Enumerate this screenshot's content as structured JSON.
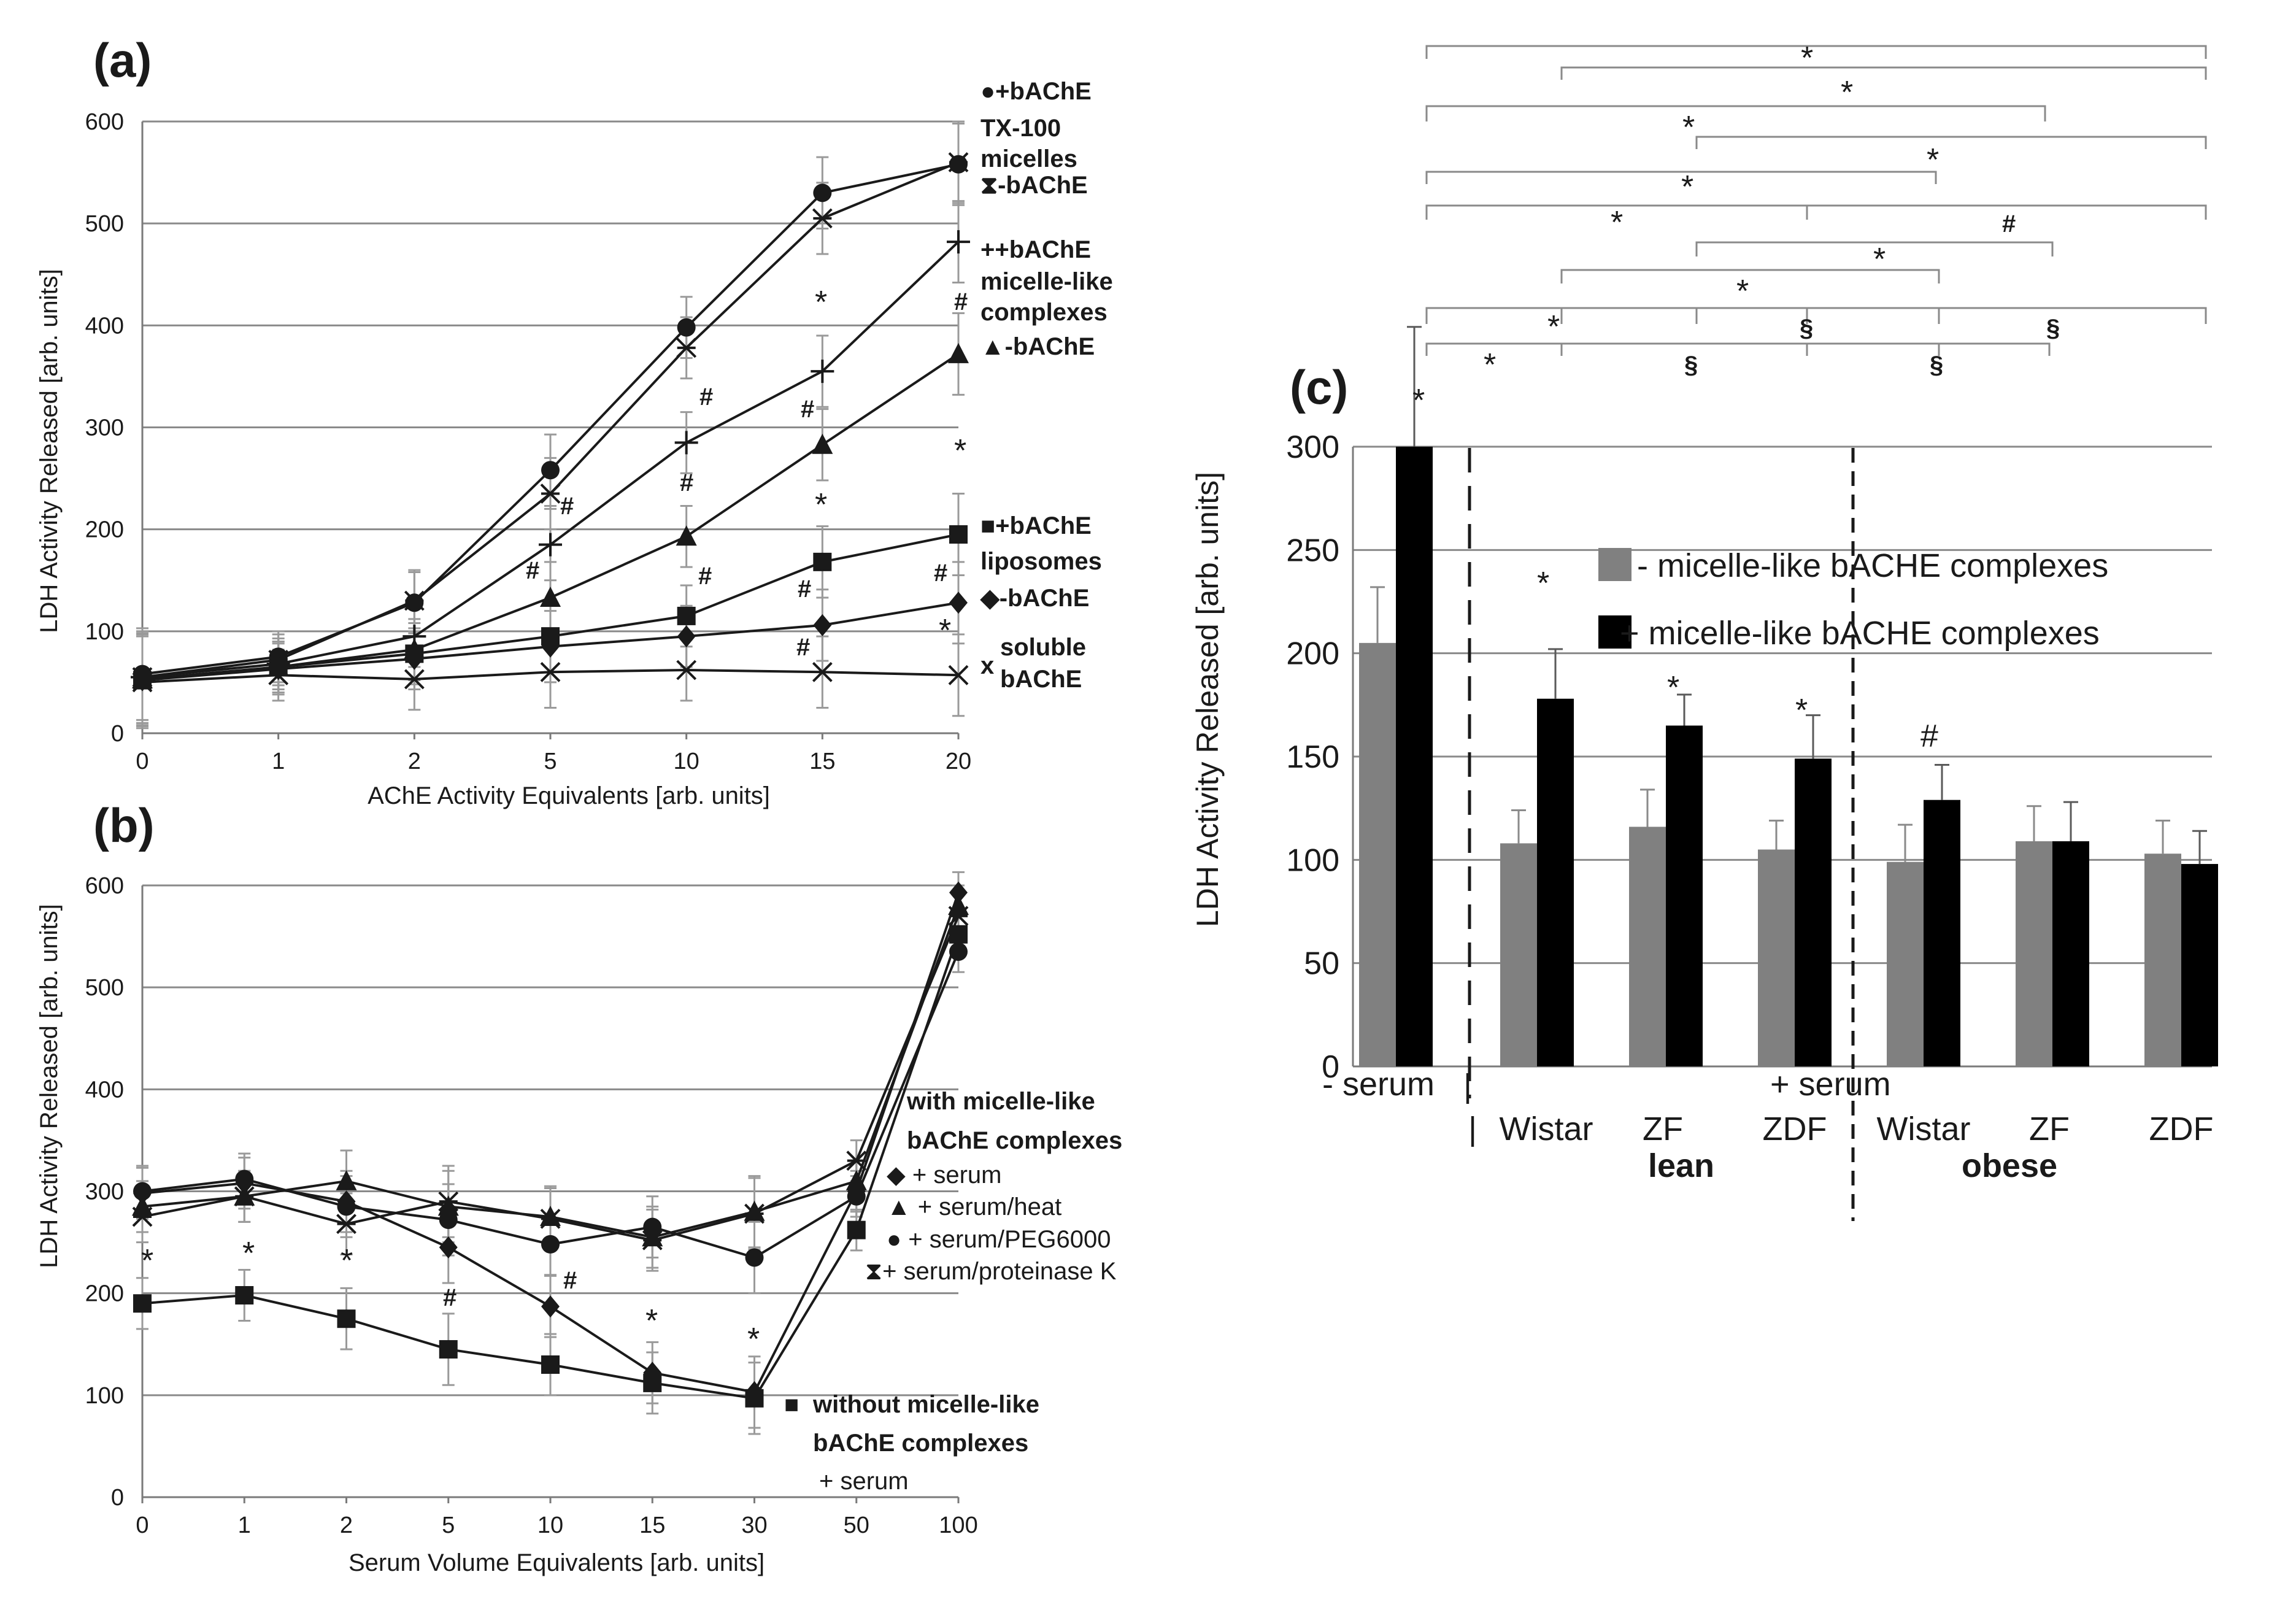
{
  "chart_data": [
    {
      "panel": "(a)",
      "type": "line",
      "xlabel": "AChE Activity Equivalents [arb. units]",
      "ylabel": "LDH Activity Released [arb. units]",
      "categories": [
        "0",
        "1",
        "2",
        "5",
        "10",
        "15",
        "20"
      ],
      "ylim": [
        0,
        600
      ],
      "yticks": [
        "0",
        "100",
        "200",
        "300",
        "400",
        "500",
        "600"
      ],
      "grid": true,
      "series": [
        {
          "name": "+bAChE TX-100 micelles",
          "marker": "circle",
          "values": [
            58,
            75,
            128,
            258,
            398,
            530,
            558
          ]
        },
        {
          "name": "-bAChE TX-100 micelles",
          "marker": "star",
          "values": [
            55,
            72,
            130,
            235,
            378,
            505,
            560
          ]
        },
        {
          "name": "+bAChE micelle-like complexes",
          "marker": "plus",
          "values": [
            55,
            68,
            95,
            185,
            285,
            355,
            482
          ]
        },
        {
          "name": "-bAChE micelle-like complexes",
          "marker": "triangle",
          "values": [
            53,
            65,
            82,
            133,
            193,
            283,
            372
          ]
        },
        {
          "name": "+bAChE liposomes",
          "marker": "square",
          "values": [
            52,
            65,
            78,
            95,
            115,
            168,
            195
          ]
        },
        {
          "name": "-bAChE liposomes",
          "marker": "diamond",
          "values": [
            52,
            63,
            73,
            85,
            95,
            106,
            128
          ]
        },
        {
          "name": "soluble bAChE",
          "marker": "x",
          "values": [
            50,
            57,
            53,
            60,
            62,
            60,
            57
          ]
        }
      ],
      "errors": [
        45,
        25,
        30,
        35,
        30,
        35,
        40
      ],
      "legend": {
        "g1": [
          "●+bAChE",
          "TX-100",
          "micelles",
          "⧗-bAChE"
        ],
        "g2": [
          "++bAChE",
          "micelle-like",
          "complexes",
          "▲-bAChE"
        ],
        "g3": [
          "■+bAChE",
          "liposomes",
          "◆-bAChE"
        ],
        "g4": [
          "x",
          "soluble",
          "bAChE"
        ]
      },
      "annotations": {
        "star": "*",
        "hash": "#"
      }
    },
    {
      "panel": "(b)",
      "type": "line",
      "xlabel": "Serum Volume Equivalents [arb. units]",
      "ylabel": "LDH Activity Released [arb. units]",
      "categories": [
        "0",
        "1",
        "2",
        "5",
        "10",
        "15",
        "30",
        "50",
        "100"
      ],
      "ylim": [
        0,
        600
      ],
      "yticks": [
        "0",
        "100",
        "200",
        "300",
        "400",
        "500",
        "600"
      ],
      "grid": true,
      "series": [
        {
          "name": "+ serum",
          "marker": "diamond",
          "values": [
            298,
            308,
            290,
            245,
            187,
            122,
            103,
            300,
            593
          ]
        },
        {
          "name": "+ serum/heat",
          "marker": "triangle",
          "values": [
            285,
            295,
            310,
            285,
            275,
            255,
            280,
            310,
            580
          ]
        },
        {
          "name": "+ serum/PEG6000",
          "marker": "circle",
          "values": [
            300,
            312,
            285,
            272,
            248,
            265,
            235,
            295,
            535
          ]
        },
        {
          "name": "+ serum/proteinase K",
          "marker": "star",
          "values": [
            275,
            295,
            268,
            290,
            273,
            252,
            278,
            330,
            570
          ]
        },
        {
          "name": "without micelle-like bAChE complexes + serum",
          "marker": "square",
          "values": [
            190,
            198,
            175,
            145,
            130,
            112,
            97,
            262,
            552
          ]
        }
      ],
      "errors": [
        25,
        25,
        30,
        35,
        30,
        30,
        35,
        20,
        20
      ],
      "legend": {
        "with_l1": "with micelle-like",
        "with_l2": "bAChE complexes",
        "s1": "◆ + serum",
        "s2": "▲ + serum/heat",
        "s3": "● + serum/PEG6000",
        "s4": "⧗+ serum/proteinase K",
        "wo_l1": "without micelle-like",
        "wo_l2": "bAChE complexes",
        "wo_l3": "+ serum",
        "wo_marker": "■"
      }
    },
    {
      "panel": "(c)",
      "type": "bar",
      "ylabel": "LDH Activity Released  [arb. units]",
      "ylim": [
        0,
        300
      ],
      "yticks": [
        "0",
        "50",
        "100",
        "150",
        "200",
        "250",
        "300"
      ],
      "grid": true,
      "groups": [
        "- serum",
        "Wistar",
        "ZF",
        "ZDF",
        "Wistar",
        "ZF",
        "ZDF"
      ],
      "series": [
        {
          "name": "- micelle-like bACHE complexes",
          "color": "#808080",
          "values": [
            205,
            108,
            116,
            105,
            99,
            109,
            103
          ],
          "errors": [
            27,
            16,
            18,
            14,
            18,
            17,
            16
          ]
        },
        {
          "name": "+ micelle-like bACHE complexes",
          "color": "#000000",
          "values": [
            300,
            178,
            165,
            149,
            129,
            109,
            98
          ],
          "errors": [
            58,
            24,
            15,
            21,
            17,
            19,
            16
          ]
        }
      ],
      "category_labels": {
        "minus_serum": "- serum",
        "plus_serum": "+ serum",
        "lean": "lean",
        "obese": "obese",
        "bar": "|"
      },
      "marks": [
        "*",
        "*",
        "*",
        "*",
        "#"
      ],
      "significance": [
        "*",
        "*",
        "*",
        "*",
        "*",
        "*",
        "#",
        "*",
        "*",
        "*",
        "§",
        "§",
        "*",
        "§",
        "§"
      ]
    }
  ]
}
